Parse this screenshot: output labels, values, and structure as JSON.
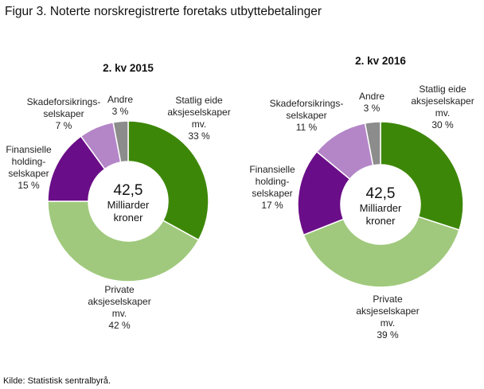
{
  "title": "Figur 3. Noterte norskregistrerte foretaks utbyttebetalinger",
  "source": "Kilde: Statistisk sentralbyrå.",
  "colors": {
    "statlig": "#3d8708",
    "private": "#a0c97d",
    "finansielle": "#6a0d88",
    "skadeforsikring": "#b486c8",
    "andre": "#8c8c8c"
  },
  "chart_data": [
    {
      "type": "pie",
      "title": "2. kv 2015",
      "center_value": "42,5",
      "center_unit_1": "Milliarder",
      "center_unit_2": "kroner",
      "slices": [
        {
          "key": "statlig",
          "label_lines": [
            "Statlig eide",
            "aksjeselskaper",
            "mv."
          ],
          "percent_text": "33 %",
          "value": 33
        },
        {
          "key": "private",
          "label_lines": [
            "Private",
            "aksjeselskaper",
            "mv."
          ],
          "percent_text": "42 %",
          "value": 42
        },
        {
          "key": "finansielle",
          "label_lines": [
            "Finansielle",
            "holding-",
            "selskaper"
          ],
          "percent_text": "15 %",
          "value": 15
        },
        {
          "key": "skadeforsikring",
          "label_lines": [
            "Skadeforsikrings-",
            "selskaper"
          ],
          "percent_text": "7 %",
          "value": 7
        },
        {
          "key": "andre",
          "label_lines": [
            "Andre"
          ],
          "percent_text": "3 %",
          "value": 3
        }
      ]
    },
    {
      "type": "pie",
      "title": "2. kv 2016",
      "center_value": "42,5",
      "center_unit_1": "Milliarder",
      "center_unit_2": "kroner",
      "slices": [
        {
          "key": "statlig",
          "label_lines": [
            "Statlig eide",
            "aksjeselskaper",
            "mv."
          ],
          "percent_text": "30 %",
          "value": 30
        },
        {
          "key": "private",
          "label_lines": [
            "Private",
            "aksjeselskaper",
            "mv."
          ],
          "percent_text": "39 %",
          "value": 39
        },
        {
          "key": "finansielle",
          "label_lines": [
            "Finansielle",
            "holding-",
            "selskaper"
          ],
          "percent_text": "17 %",
          "value": 17
        },
        {
          "key": "skadeforsikring",
          "label_lines": [
            "Skadeforsikrings-",
            "selskaper"
          ],
          "percent_text": "11 %",
          "value": 11
        },
        {
          "key": "andre",
          "label_lines": [
            "Andre"
          ],
          "percent_text": "3 %",
          "value": 3
        }
      ]
    }
  ]
}
